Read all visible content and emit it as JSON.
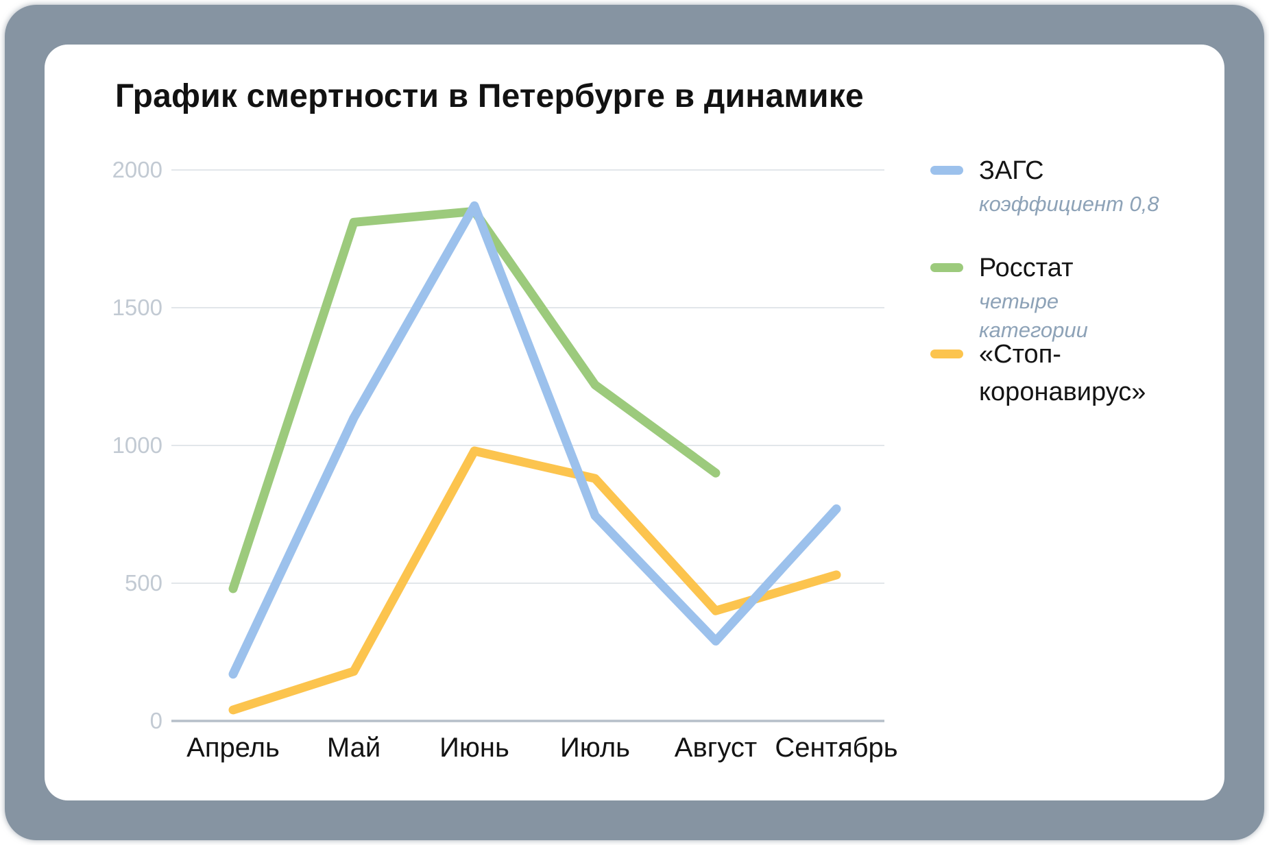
{
  "title": "График смертности в Петербурге в динамике",
  "colors": {
    "frame": "#8694a2",
    "card": "#ffffff",
    "grid": "#e2e6ea",
    "axis": "#b6bfc9",
    "ytick_text": "#c2cad3",
    "xtick_text": "#131313",
    "note_text": "#8da2b7"
  },
  "chart_data": {
    "type": "line",
    "title": "График смертности в Петербурге в динамике",
    "categories": [
      "Апрель",
      "Май",
      "Июнь",
      "Июль",
      "Август",
      "Сентябрь"
    ],
    "series": [
      {
        "name": "ЗАГС",
        "note": "коэффициент 0,8",
        "color": "#9cc1ec",
        "values": [
          170,
          1100,
          1870,
          745,
          290,
          770
        ]
      },
      {
        "name": "Росстат",
        "note": "четыре категории",
        "color": "#9cca7c",
        "values": [
          480,
          1810,
          1850,
          1220,
          900,
          null
        ]
      },
      {
        "name": "«Стоп-коронавирус»",
        "note": "",
        "color": "#fcc44e",
        "values": [
          40,
          180,
          980,
          880,
          400,
          530
        ]
      }
    ],
    "xlabel": "",
    "ylabel": "",
    "ylim": [
      0,
      2000
    ],
    "yticks": [
      0,
      500,
      1000,
      1500,
      2000
    ],
    "grid": true,
    "legend_position": "right"
  }
}
